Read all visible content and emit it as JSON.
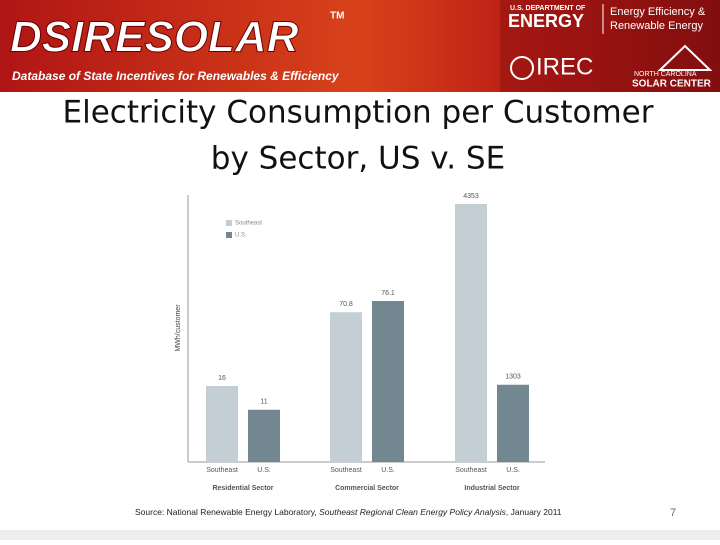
{
  "header": {
    "brand": "DSIRESOLAR",
    "trademark": "TM",
    "tagline": "Database of State Incentives for Renewables & Efficiency",
    "doe_small": "U.S. DEPARTMENT OF",
    "doe": "ENERGY",
    "eere_1": "Energy Efficiency &",
    "eere_2": "Renewable Energy",
    "irec": "IREC",
    "ncsc_1": "NORTH CAROLINA",
    "ncsc_2": "SOLAR CENTER"
  },
  "slide": {
    "title_1": "Electricity Consumption per Customer",
    "title_2": "by Sector, US v. SE",
    "source_1": "Source: National Renewable Energy Laboratory, ",
    "source_2": "Southeast Regional Clean Energy Policy Analysis",
    "source_3": ", January 2011",
    "page": "7"
  },
  "chart_data": {
    "type": "bar",
    "y_label": "MWh/customer",
    "categories": [
      "Residential Sector",
      "Commercial Sector",
      "Industrial Sector"
    ],
    "series": [
      {
        "name": "Southeast",
        "color": "#c3cfd5",
        "values": [
          16,
          70.8,
          4353
        ]
      },
      {
        "name": "U.S.",
        "color": "#72878f",
        "values": [
          11,
          76.1,
          1303
        ]
      }
    ]
  }
}
